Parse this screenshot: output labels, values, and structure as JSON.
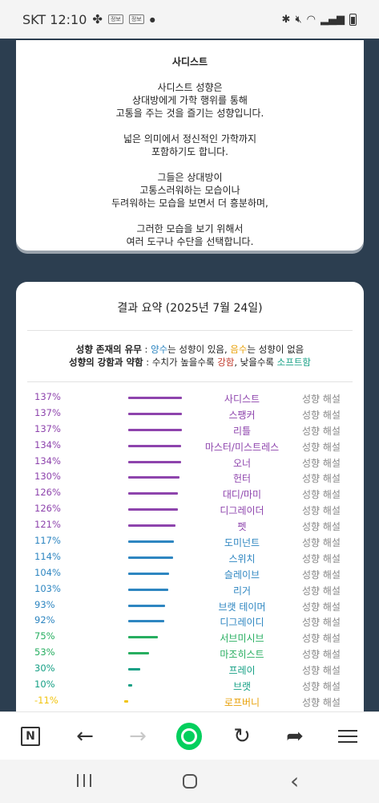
{
  "status_bar": {
    "carrier_time": "SKT 12:10",
    "badge1": "정보",
    "badge2": "정보"
  },
  "type_card": {
    "title": "사디스트",
    "paragraphs": [
      [
        "사디스트 성향은",
        "상대방에게 가학 행위를 통해",
        "고통을 주는 것을 즐기는 성향입니다."
      ],
      [
        "넓은 의미에서 정신적인 가학까지",
        "포함하기도 합니다."
      ],
      [
        "그들은 상대방이",
        "고통스러워하는 모습이나",
        "두려워하는 모습을 보면서 더 흥분하며,"
      ],
      [
        "그러한 모습을 보기 위해서",
        "여러 도구나 수단을 선택합니다."
      ]
    ]
  },
  "summary": {
    "title": "결과 요약 (2025년 7월 24일)",
    "legend1": {
      "label": "성향 존재의 유무",
      "sep": " : ",
      "pos": "양수",
      "mid1": "는 성향이 있음, ",
      "neg": "음수",
      "mid2": "는 성향이 없음"
    },
    "legend2": {
      "label": "성향의 강함과 약함",
      "sep": " : 수치가 높을수록 ",
      "strong": "강함",
      "mid": ", 낮을수록 ",
      "soft": "소프트함"
    },
    "link_label": "성향 해설",
    "colors": {
      "purple": "#8e44ad",
      "blue": "#2e86c1",
      "green": "#27ae60",
      "teal": "#16a085",
      "yellow": "#f1c40f",
      "orange": "#e8a20c"
    },
    "rows": [
      {
        "pct": "137%",
        "value": 137,
        "name": "사디스트",
        "color": "purple"
      },
      {
        "pct": "137%",
        "value": 137,
        "name": "스팽커",
        "color": "purple"
      },
      {
        "pct": "137%",
        "value": 137,
        "name": "리틀",
        "color": "purple"
      },
      {
        "pct": "134%",
        "value": 134,
        "name": "마스터/미스트레스",
        "color": "purple"
      },
      {
        "pct": "134%",
        "value": 134,
        "name": "오너",
        "color": "purple"
      },
      {
        "pct": "130%",
        "value": 130,
        "name": "헌터",
        "color": "purple"
      },
      {
        "pct": "126%",
        "value": 126,
        "name": "대디/마미",
        "color": "purple"
      },
      {
        "pct": "126%",
        "value": 126,
        "name": "디그레이더",
        "color": "purple"
      },
      {
        "pct": "121%",
        "value": 121,
        "name": "펫",
        "color": "purple"
      },
      {
        "pct": "117%",
        "value": 117,
        "name": "도미넌트",
        "color": "blue"
      },
      {
        "pct": "114%",
        "value": 114,
        "name": "스위치",
        "color": "blue"
      },
      {
        "pct": "104%",
        "value": 104,
        "name": "슬레이브",
        "color": "blue"
      },
      {
        "pct": "103%",
        "value": 103,
        "name": "리거",
        "color": "blue"
      },
      {
        "pct": "93%",
        "value": 93,
        "name": "브랫 테이머",
        "color": "blue"
      },
      {
        "pct": "92%",
        "value": 92,
        "name": "디그레이디",
        "color": "blue"
      },
      {
        "pct": "75%",
        "value": 75,
        "name": "서브미시브",
        "color": "green"
      },
      {
        "pct": "53%",
        "value": 53,
        "name": "마조히스트",
        "color": "green"
      },
      {
        "pct": "30%",
        "value": 30,
        "name": "프레이",
        "color": "teal"
      },
      {
        "pct": "10%",
        "value": 10,
        "name": "브랫",
        "color": "teal"
      },
      {
        "pct": "-11%",
        "value": -11,
        "name": "로프버니",
        "color": "yellow"
      }
    ]
  },
  "toolbar": {
    "n_label": "N",
    "back": "←",
    "forward": "→",
    "refresh": "↻",
    "share": "➦"
  },
  "navbar": {
    "back": "‹"
  }
}
